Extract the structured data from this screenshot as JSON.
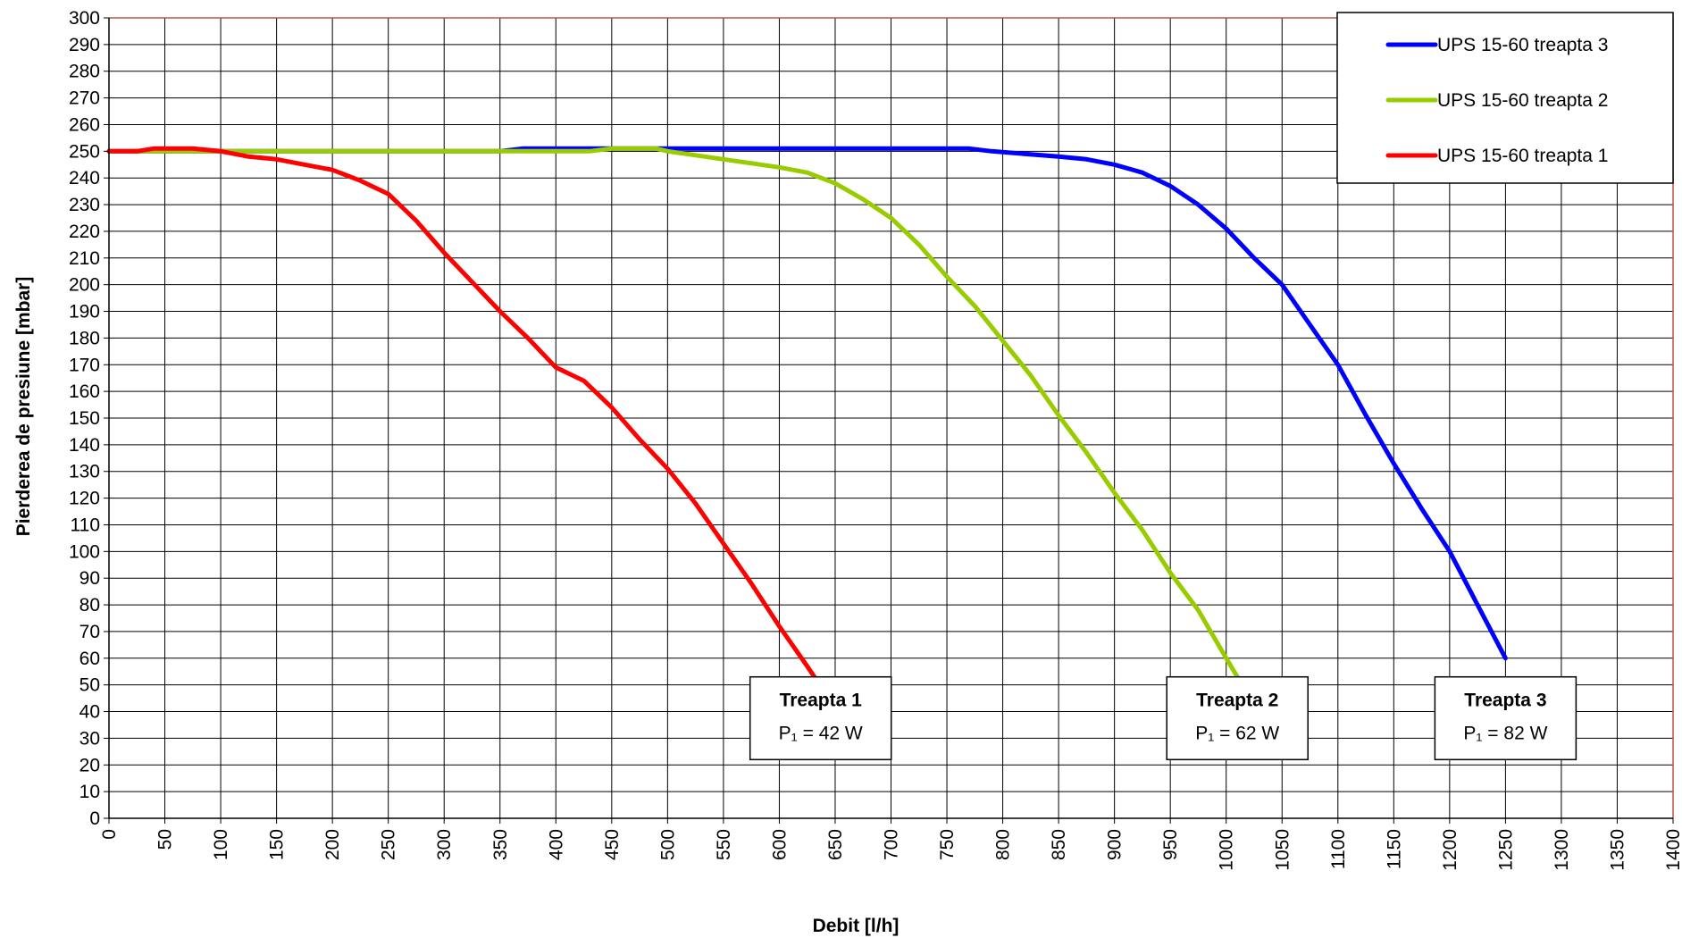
{
  "chart_data": {
    "type": "line",
    "title": "",
    "xlabel": "Debit [l/h]",
    "ylabel": "Pierderea de presiune [mbar]",
    "xlim": [
      0,
      1400
    ],
    "ylim": [
      0,
      300
    ],
    "x_ticks": [
      0,
      50,
      100,
      150,
      200,
      250,
      300,
      350,
      400,
      450,
      500,
      550,
      600,
      650,
      700,
      750,
      800,
      850,
      900,
      950,
      1000,
      1050,
      1100,
      1150,
      1200,
      1250,
      1300,
      1350,
      1400
    ],
    "y_ticks": [
      0,
      10,
      20,
      30,
      40,
      50,
      60,
      70,
      80,
      90,
      100,
      110,
      120,
      130,
      140,
      150,
      160,
      170,
      180,
      190,
      200,
      210,
      220,
      230,
      240,
      250,
      260,
      270,
      280,
      290,
      300
    ],
    "grid": true,
    "legend_position": "top-right",
    "colors": {
      "plot_border": "#c0504d",
      "grid": "#000000"
    },
    "series": [
      {
        "name": "UPS 15-60 treapta 3",
        "color": "#0000ff",
        "points": [
          [
            0,
            250
          ],
          [
            350,
            250
          ],
          [
            370,
            251
          ],
          [
            770,
            251
          ],
          [
            790,
            250
          ],
          [
            850,
            248
          ],
          [
            875,
            247
          ],
          [
            900,
            245
          ],
          [
            925,
            242
          ],
          [
            950,
            237
          ],
          [
            975,
            230
          ],
          [
            1000,
            221
          ],
          [
            1025,
            210
          ],
          [
            1050,
            200
          ],
          [
            1075,
            185
          ],
          [
            1100,
            170
          ],
          [
            1125,
            151
          ],
          [
            1150,
            133
          ],
          [
            1175,
            116
          ],
          [
            1200,
            100
          ],
          [
            1225,
            80
          ],
          [
            1250,
            60
          ]
        ]
      },
      {
        "name": "UPS 15-60 treapta  2",
        "color": "#99cc00",
        "points": [
          [
            0,
            250
          ],
          [
            430,
            250
          ],
          [
            450,
            251
          ],
          [
            490,
            251
          ],
          [
            500,
            250
          ],
          [
            550,
            247
          ],
          [
            600,
            244
          ],
          [
            625,
            242
          ],
          [
            650,
            238
          ],
          [
            675,
            232
          ],
          [
            700,
            225
          ],
          [
            725,
            215
          ],
          [
            750,
            203
          ],
          [
            775,
            192
          ],
          [
            800,
            179
          ],
          [
            825,
            166
          ],
          [
            850,
            151
          ],
          [
            875,
            137
          ],
          [
            900,
            122
          ],
          [
            925,
            108
          ],
          [
            950,
            92
          ],
          [
            975,
            78
          ],
          [
            1000,
            60
          ],
          [
            1010,
            53
          ]
        ]
      },
      {
        "name": "UPS 15-60 treapta 1",
        "color": "#ff0000",
        "points": [
          [
            0,
            250
          ],
          [
            25,
            250
          ],
          [
            40,
            251
          ],
          [
            75,
            251
          ],
          [
            100,
            250
          ],
          [
            125,
            248
          ],
          [
            150,
            247
          ],
          [
            175,
            245
          ],
          [
            200,
            243
          ],
          [
            225,
            239
          ],
          [
            250,
            234
          ],
          [
            275,
            224
          ],
          [
            300,
            212
          ],
          [
            325,
            201
          ],
          [
            350,
            190
          ],
          [
            375,
            180
          ],
          [
            400,
            169
          ],
          [
            425,
            164
          ],
          [
            450,
            154
          ],
          [
            475,
            142
          ],
          [
            500,
            131
          ],
          [
            525,
            118
          ],
          [
            550,
            103
          ],
          [
            575,
            88
          ],
          [
            600,
            72
          ],
          [
            625,
            57
          ],
          [
            633,
            52
          ]
        ]
      }
    ],
    "annotations": [
      {
        "title": "Treapta 1",
        "subtitle": "P₁ = 42 W"
      },
      {
        "title": "Treapta 2",
        "subtitle": "P₁ = 62 W"
      },
      {
        "title": "Treapta 3",
        "subtitle": "P₁ = 82 W"
      }
    ]
  }
}
